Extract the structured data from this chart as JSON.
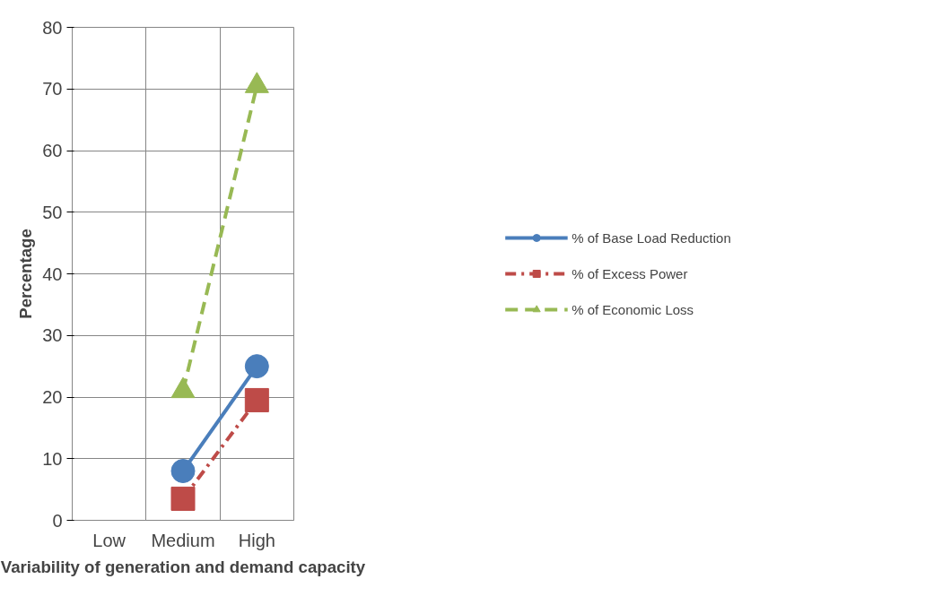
{
  "chart_data": {
    "type": "line",
    "xlabel": "Variability of generation and demand capacity",
    "ylabel": "Percentage",
    "categories": [
      "Low",
      "Medium",
      "High"
    ],
    "ylim": [
      0,
      80
    ],
    "yticks": [
      0,
      10,
      20,
      30,
      40,
      50,
      60,
      70,
      80
    ],
    "grid": true,
    "legend": "right",
    "series": [
      {
        "name": "% of Base Load Reduction",
        "color": "#4a7ebb",
        "marker": "circle",
        "line_style": "solid",
        "values": [
          null,
          8,
          25
        ]
      },
      {
        "name": "% of Excess Power",
        "color": "#be4b48",
        "marker": "square",
        "line_style": "dashdot",
        "values": [
          null,
          3.5,
          19.5
        ]
      },
      {
        "name": "% of Economic Loss",
        "color": "#98b954",
        "marker": "triangle",
        "line_style": "dashed",
        "values": [
          null,
          21,
          70.5
        ]
      }
    ]
  }
}
